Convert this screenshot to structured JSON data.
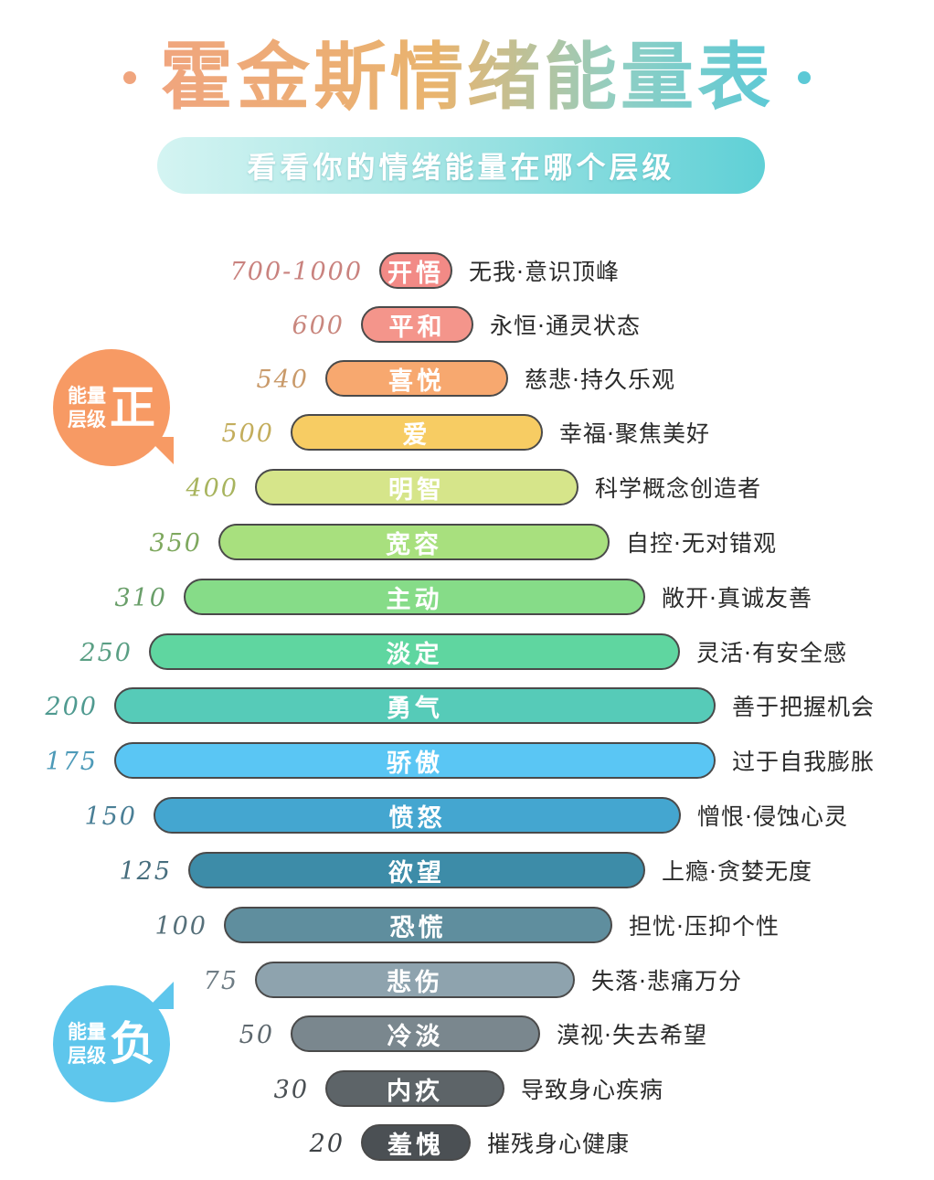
{
  "header": {
    "title": "霍金斯情绪能量表",
    "subtitle": "看看你的情绪能量在哪个层级"
  },
  "badges": {
    "positive": {
      "line1": "能量",
      "line2": "层级",
      "big": "正",
      "color": "#f79a64"
    },
    "negative": {
      "line1": "能量",
      "line2": "层级",
      "big": "负",
      "color": "#5ec6ec"
    }
  },
  "levels": [
    {
      "value": "700-1000",
      "name": "开悟",
      "desc": "无我·意识顶峰",
      "color": "#f28a86",
      "valueColor": "#c9827e"
    },
    {
      "value": "600",
      "name": "平和",
      "desc": "永恒·通灵状态",
      "color": "#f4958b",
      "valueColor": "#c9877e"
    },
    {
      "value": "540",
      "name": "喜悦",
      "desc": "慈悲·持久乐观",
      "color": "#f7a86f",
      "valueColor": "#c99a6a"
    },
    {
      "value": "500",
      "name": "爱",
      "desc": "幸福·聚焦美好",
      "color": "#f7cc63",
      "valueColor": "#c3ad5c"
    },
    {
      "value": "400",
      "name": "明智",
      "desc": "科学概念创造者",
      "color": "#d6e58a",
      "valueColor": "#a8b45e"
    },
    {
      "value": "350",
      "name": "宽容",
      "desc": "自控·无对错观",
      "color": "#a8e07e",
      "valueColor": "#7ea85e"
    },
    {
      "value": "310",
      "name": "主动",
      "desc": "敞开·真诚友善",
      "color": "#86dc88",
      "valueColor": "#6a9f6a"
    },
    {
      "value": "250",
      "name": "淡定",
      "desc": "灵活·有安全感",
      "color": "#5fd6a0",
      "valueColor": "#5a9f84"
    },
    {
      "value": "200",
      "name": "勇气",
      "desc": "善于把握机会",
      "color": "#56cbb8",
      "valueColor": "#4f9a90"
    },
    {
      "value": "175",
      "name": "骄傲",
      "desc": "过于自我膨胀",
      "color": "#5ac6f4",
      "valueColor": "#4d9ab8"
    },
    {
      "value": "150",
      "name": "愤怒",
      "desc": "憎恨·侵蚀心灵",
      "color": "#44a6d0",
      "valueColor": "#4a7f96"
    },
    {
      "value": "125",
      "name": "欲望",
      "desc": "上瘾·贪婪无度",
      "color": "#3d8ca8",
      "valueColor": "#476e7e"
    },
    {
      "value": "100",
      "name": "恐慌",
      "desc": "担忧·压抑个性",
      "color": "#5f8e9e",
      "valueColor": "#56707a"
    },
    {
      "value": "75",
      "name": "悲伤",
      "desc": "失落·悲痛万分",
      "color": "#8ea3ae",
      "valueColor": "#6e7c84"
    },
    {
      "value": "50",
      "name": "冷淡",
      "desc": "漠视·失去希望",
      "color": "#7a878e",
      "valueColor": "#5e686e"
    },
    {
      "value": "30",
      "name": "内疚",
      "desc": "导致身心疾病",
      "color": "#5d6468",
      "valueColor": "#4a5054"
    },
    {
      "value": "20",
      "name": "羞愧",
      "desc": "摧残身心健康",
      "color": "#4b5054",
      "valueColor": "#3e4245"
    }
  ]
}
